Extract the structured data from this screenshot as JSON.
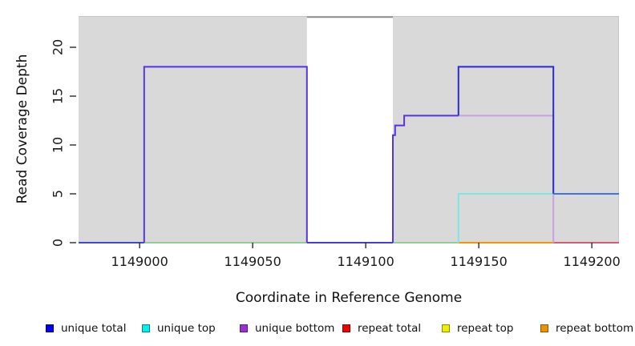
{
  "figure": {
    "background": "#ffffff",
    "plot_background": "#d9d9d9"
  },
  "chart_data": {
    "type": "line",
    "subtype": "step-coverage",
    "title": "",
    "xlabel": "Coordinate in Reference Genome",
    "ylabel": "Read Coverage Depth",
    "xlim": [
      1148973,
      1149212
    ],
    "ylim": [
      0,
      23.2
    ],
    "x_ticks": [
      1149000,
      1149050,
      1149100,
      1149150,
      1149200
    ],
    "y_ticks": [
      0,
      5,
      10,
      15,
      20
    ],
    "grid": false,
    "legend_position": "bottom",
    "plot_bg": "#d9d9d9",
    "masked_region": {
      "x0": 1149074,
      "x1": 1149112,
      "fill": "#ffffff"
    },
    "series": [
      {
        "name": "unique total",
        "color": "#0000ee",
        "steps": [
          [
            1148973,
            0
          ],
          [
            1149002,
            0
          ],
          [
            1149002,
            18
          ],
          [
            1149074,
            18
          ],
          [
            1149074,
            0
          ],
          [
            1149112,
            0
          ],
          [
            1149112,
            11
          ],
          [
            1149113,
            11
          ],
          [
            1149113,
            12
          ],
          [
            1149117,
            12
          ],
          [
            1149117,
            13
          ],
          [
            1149141,
            13
          ],
          [
            1149141,
            18
          ],
          [
            1149183,
            18
          ],
          [
            1149183,
            5
          ],
          [
            1149212,
            5
          ]
        ]
      },
      {
        "name": "unique top",
        "color": "#00eeee",
        "steps": [
          [
            1148973,
            0
          ],
          [
            1149141,
            0
          ],
          [
            1149141,
            5
          ],
          [
            1149183,
            5
          ],
          [
            1149183,
            0
          ],
          [
            1149212,
            0
          ]
        ]
      },
      {
        "name": "unique bottom",
        "color": "#9b30d0",
        "steps": [
          [
            1148973,
            0
          ],
          [
            1149002,
            0
          ],
          [
            1149002,
            18
          ],
          [
            1149074,
            18
          ],
          [
            1149074,
            0
          ],
          [
            1149112,
            0
          ],
          [
            1149112,
            11
          ],
          [
            1149113,
            11
          ],
          [
            1149113,
            12
          ],
          [
            1149117,
            12
          ],
          [
            1149117,
            13
          ],
          [
            1149183,
            13
          ],
          [
            1149183,
            0
          ],
          [
            1149212,
            0
          ]
        ]
      },
      {
        "name": "repeat total",
        "color": "#ee0000",
        "steps": [
          [
            1148973,
            0
          ],
          [
            1149212,
            0
          ]
        ]
      },
      {
        "name": "repeat top",
        "color": "#eeee00",
        "steps": [
          [
            1148973,
            0
          ],
          [
            1149212,
            0
          ]
        ]
      },
      {
        "name": "repeat bottom",
        "color": "#ee9100",
        "steps": [
          [
            1148973,
            0
          ],
          [
            1149212,
            0
          ]
        ]
      }
    ],
    "rendered_segments": [
      {
        "name": "baseline-green-left",
        "color": "#90d090",
        "width": 2,
        "points": [
          [
            1149002,
            0
          ],
          [
            1149074,
            0
          ]
        ]
      },
      {
        "name": "baseline-green-mid",
        "color": "#90d090",
        "width": 2,
        "points": [
          [
            1149112,
            0
          ],
          [
            1149141,
            0
          ]
        ]
      },
      {
        "name": "baseline-orange",
        "color": "#ff9100",
        "width": 2,
        "points": [
          [
            1149141,
            0
          ],
          [
            1149183,
            0
          ]
        ]
      },
      {
        "name": "baseline-pink",
        "color": "#dd5577",
        "width": 2,
        "points": [
          [
            1149183,
            0
          ],
          [
            1149212,
            0
          ]
        ]
      },
      {
        "name": "baseline-blue-far-left",
        "color": "#4343e0",
        "width": 2,
        "points": [
          [
            1148973,
            0
          ],
          [
            1149002,
            0
          ]
        ]
      },
      {
        "name": "baseline-blue-gap",
        "color": "#4b39db",
        "width": 2,
        "points": [
          [
            1149074,
            0
          ],
          [
            1149112,
            0
          ]
        ]
      },
      {
        "name": "unique-bottom-13-shelf",
        "color": "#c9a0e0",
        "width": 2,
        "points": [
          [
            1149141,
            13
          ],
          [
            1149183,
            13
          ],
          [
            1149183,
            0
          ]
        ]
      },
      {
        "name": "unique-top-5-shelf",
        "color": "#7ae6e6",
        "width": 2,
        "points": [
          [
            1149141,
            0
          ],
          [
            1149141,
            5
          ],
          [
            1149183,
            5
          ]
        ]
      },
      {
        "name": "total-bottom-block-left",
        "color": "#5533e6",
        "width": 2,
        "points": [
          [
            1149002,
            0
          ],
          [
            1149002,
            18
          ],
          [
            1149074,
            18
          ],
          [
            1149074,
            0
          ]
        ]
      },
      {
        "name": "total-bottom-steps",
        "color": "#5533e6",
        "width": 2,
        "points": [
          [
            1149112,
            0
          ],
          [
            1149112,
            11
          ],
          [
            1149113,
            11
          ],
          [
            1149113,
            12
          ],
          [
            1149117,
            12
          ],
          [
            1149117,
            13
          ],
          [
            1149141,
            13
          ]
        ]
      },
      {
        "name": "total-block-right",
        "color": "#2a2ad6",
        "width": 2,
        "points": [
          [
            1149141,
            13
          ],
          [
            1149141,
            18
          ],
          [
            1149183,
            18
          ],
          [
            1149183,
            5
          ]
        ]
      },
      {
        "name": "total-5-right",
        "color": "#3f72ee",
        "width": 2,
        "points": [
          [
            1149183,
            5
          ],
          [
            1149212,
            5
          ]
        ]
      },
      {
        "name": "gap-top-cap-line",
        "color": "#8a8a8a",
        "width": 2,
        "points": [
          [
            1149074,
            23.1
          ],
          [
            1149112,
            23.1
          ]
        ]
      }
    ]
  },
  "legend": {
    "items": [
      {
        "label": "unique total",
        "fill": "#0000ee",
        "border": "#00008b"
      },
      {
        "label": "unique top",
        "fill": "#00eeee",
        "border": "#008b8b"
      },
      {
        "label": "unique bottom",
        "fill": "#9b30d0",
        "border": "#551a8b"
      },
      {
        "label": "repeat total",
        "fill": "#ee0000",
        "border": "#8b0000"
      },
      {
        "label": "repeat top",
        "fill": "#eeee00",
        "border": "#8b8b00"
      },
      {
        "label": "repeat bottom",
        "fill": "#ee9100",
        "border": "#8b5a00"
      }
    ]
  }
}
